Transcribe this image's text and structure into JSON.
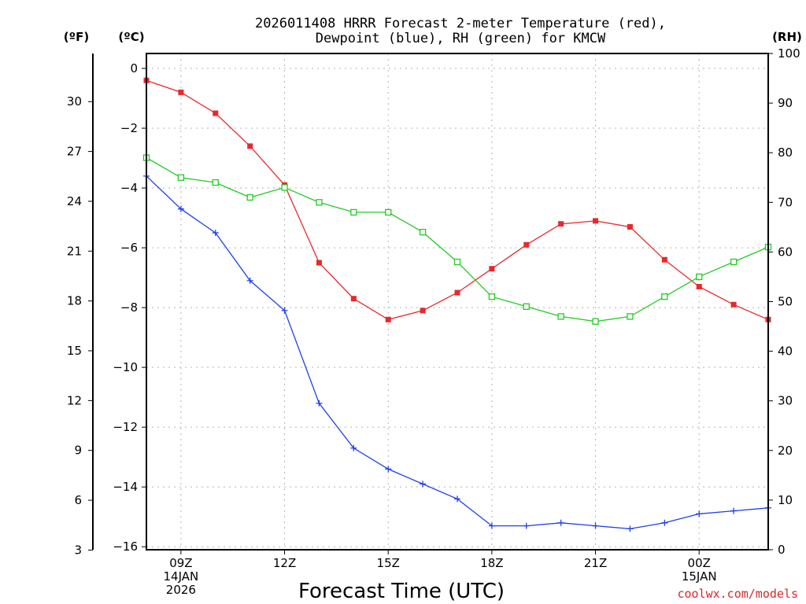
{
  "chart_data": {
    "type": "line",
    "title": "2026011408 HRRR Forecast 2-meter Temperature (red),",
    "subtitle": "Dewpoint (blue), RH (green) for KMCW",
    "xlabel": "Forecast Time (UTC)",
    "credit": "coolwx.com/models",
    "axis_units": {
      "fahrenheit": "(ºF)",
      "celsius": "(ºC)",
      "rh": "(RH)"
    },
    "x_hours": [
      8,
      9,
      10,
      11,
      12,
      13,
      14,
      15,
      16,
      17,
      18,
      19,
      20,
      21,
      22,
      23,
      24,
      25,
      26
    ],
    "x_range": [
      8,
      26
    ],
    "x_ticks": [
      {
        "hour": 9,
        "lines": [
          "09Z",
          "14JAN",
          "2026"
        ]
      },
      {
        "hour": 12,
        "lines": [
          "12Z"
        ]
      },
      {
        "hour": 15,
        "lines": [
          "15Z"
        ]
      },
      {
        "hour": 18,
        "lines": [
          "18Z"
        ]
      },
      {
        "hour": 21,
        "lines": [
          "21Z"
        ]
      },
      {
        "hour": 24,
        "lines": [
          "00Z",
          "15JAN"
        ]
      }
    ],
    "celsius_range": [
      -16.1,
      0.5
    ],
    "celsius_ticks": [
      0,
      -2,
      -4,
      -6,
      -8,
      -10,
      -12,
      -14,
      -16
    ],
    "fahrenheit_ticks": [
      30,
      27,
      24,
      21,
      18,
      15,
      12,
      9,
      6,
      3
    ],
    "rh_range": [
      0,
      100
    ],
    "rh_ticks": [
      100,
      90,
      80,
      70,
      60,
      50,
      40,
      30,
      20,
      10,
      0
    ],
    "grid": true,
    "series": [
      {
        "name": "Temperature",
        "axis": "celsius",
        "color": "#e8282d",
        "marker": "filled-square",
        "values": [
          -0.4,
          -0.8,
          -1.5,
          -2.6,
          -3.9,
          -6.5,
          -7.7,
          -8.4,
          -8.1,
          -7.5,
          -6.7,
          -5.9,
          -5.2,
          -5.1,
          -5.3,
          -6.4,
          -7.3,
          -7.9,
          -8.4
        ]
      },
      {
        "name": "Dewpoint",
        "axis": "celsius",
        "color": "#2040e8",
        "marker": "plus",
        "values": [
          -3.6,
          -4.7,
          -5.5,
          -7.1,
          -8.1,
          -11.2,
          -12.7,
          -13.4,
          -13.9,
          -14.4,
          -15.3,
          -15.3,
          -15.2,
          -15.3,
          -15.4,
          -15.2,
          -14.9,
          -14.8,
          -14.7
        ]
      },
      {
        "name": "RH",
        "axis": "rh",
        "color": "#22cc22",
        "marker": "open-square",
        "values": [
          79,
          75,
          74,
          71,
          73,
          70,
          68,
          68,
          64,
          58,
          51,
          49,
          47,
          46,
          47,
          51,
          55,
          58,
          61
        ]
      }
    ]
  }
}
